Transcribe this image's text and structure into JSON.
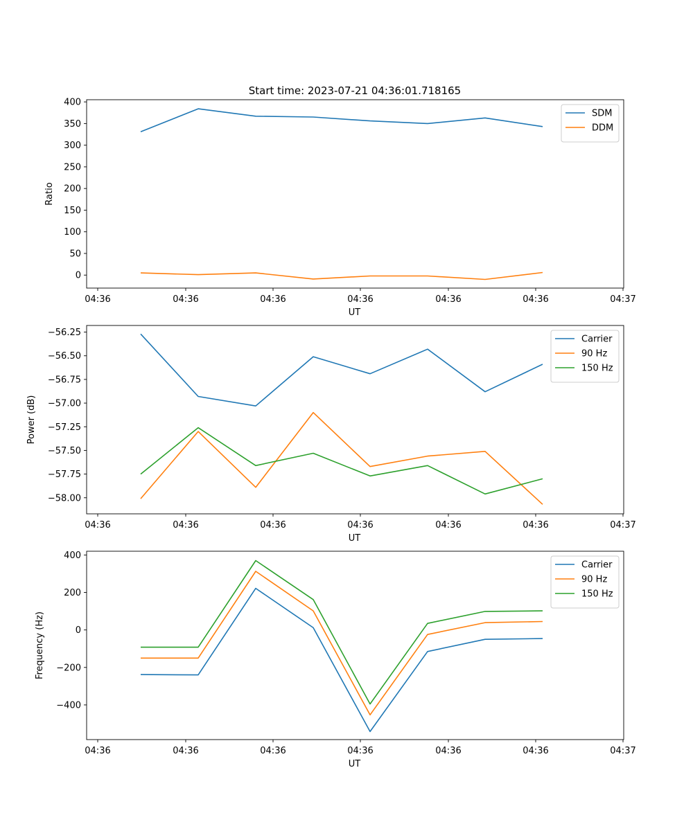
{
  "figure": {
    "title": "Start time: 2023-07-21 04:36:01.718165"
  },
  "chart_data": [
    {
      "type": "line",
      "ylabel": "Ratio",
      "xlabel": "UT",
      "x_tick_labels": [
        "04:36",
        "04:36",
        "04:36",
        "04:36",
        "04:36",
        "04:36",
        "04:36",
        "04:37"
      ],
      "ylim": [
        -30,
        405
      ],
      "y_ticks": [
        0,
        50,
        100,
        150,
        200,
        250,
        300,
        350,
        400
      ],
      "y_tick_labels": [
        "0",
        "50",
        "100",
        "150",
        "200",
        "250",
        "300",
        "350",
        "400"
      ],
      "series": [
        {
          "name": "SDM",
          "color": "#1f77b4",
          "values": [
            331,
            384,
            367,
            365,
            356,
            350,
            363,
            343
          ]
        },
        {
          "name": "DDM",
          "color": "#ff7f0e",
          "values": [
            5,
            1,
            5,
            -9,
            -2,
            -2,
            -10,
            6
          ]
        }
      ],
      "legend": "top-right"
    },
    {
      "type": "line",
      "ylabel": "Power (dB)",
      "xlabel": "UT",
      "x_tick_labels": [
        "04:36",
        "04:36",
        "04:36",
        "04:36",
        "04:36",
        "04:36",
        "04:36",
        "04:37"
      ],
      "ylim": [
        -58.17,
        -56.18
      ],
      "y_ticks": [
        -58.0,
        -57.75,
        -57.5,
        -57.25,
        -57.0,
        -56.75,
        -56.5,
        -56.25
      ],
      "y_tick_labels": [
        "−58.00",
        "−57.75",
        "−57.50",
        "−57.25",
        "−57.00",
        "−56.75",
        "−56.50",
        "−56.25"
      ],
      "series": [
        {
          "name": "Carrier",
          "color": "#1f77b4",
          "values": [
            -56.27,
            -56.93,
            -57.03,
            -56.51,
            -56.69,
            -56.43,
            -56.88,
            -56.59
          ]
        },
        {
          "name": "90 Hz",
          "color": "#ff7f0e",
          "values": [
            -58.01,
            -57.3,
            -57.89,
            -57.1,
            -57.67,
            -57.56,
            -57.51,
            -58.07
          ]
        },
        {
          "name": "150 Hz",
          "color": "#2ca02c",
          "values": [
            -57.75,
            -57.26,
            -57.66,
            -57.53,
            -57.77,
            -57.66,
            -57.96,
            -57.8
          ]
        }
      ],
      "legend": "top-right"
    },
    {
      "type": "line",
      "ylabel": "Frequency (Hz)",
      "xlabel": "UT",
      "x_tick_labels": [
        "04:36",
        "04:36",
        "04:36",
        "04:36",
        "04:36",
        "04:36",
        "04:36",
        "04:37"
      ],
      "ylim": [
        -585,
        420
      ],
      "y_ticks": [
        -400,
        -200,
        0,
        200,
        400
      ],
      "y_tick_labels": [
        "−400",
        "−200",
        "0",
        "200",
        "400"
      ],
      "series": [
        {
          "name": "Carrier",
          "color": "#1f77b4",
          "values": [
            -238,
            -240,
            222,
            12,
            -542,
            -115,
            -50,
            -46
          ]
        },
        {
          "name": "90 Hz",
          "color": "#ff7f0e",
          "values": [
            -150,
            -150,
            313,
            102,
            -453,
            -24,
            39,
            45
          ]
        },
        {
          "name": "150 Hz",
          "color": "#2ca02c",
          "values": [
            -92,
            -92,
            370,
            162,
            -395,
            35,
            99,
            102
          ]
        }
      ],
      "legend": "top-right"
    }
  ]
}
